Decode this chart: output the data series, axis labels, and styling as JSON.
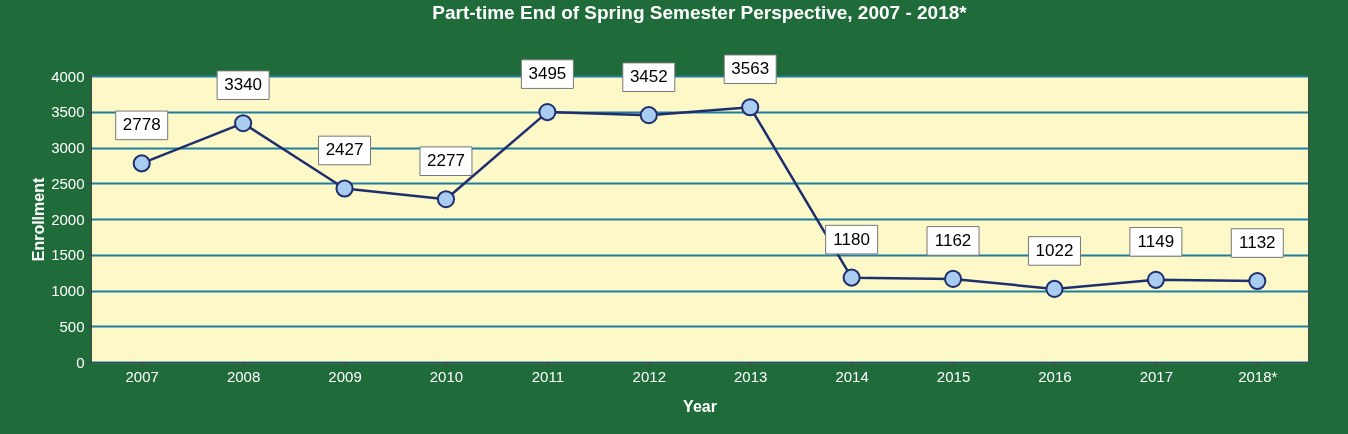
{
  "chart_data": {
    "type": "line",
    "title": "Part-time End of Spring Semester Perspective, 2007 - 2018*",
    "xlabel": "Year",
    "ylabel": "Enrollment",
    "categories": [
      "2007",
      "2008",
      "2009",
      "2010",
      "2011",
      "2012",
      "2013",
      "2014",
      "2015",
      "2016",
      "2017",
      "2018*"
    ],
    "series": [
      {
        "color": "#1f2f6e",
        "values": [
          2778,
          3340,
          2427,
          2277,
          3495,
          3452,
          3563,
          1180,
          1162,
          1022,
          1149,
          1132
        ]
      }
    ],
    "ylim": [
      0,
      4000
    ],
    "yticks": [
      0,
      500,
      1000,
      1500,
      2000,
      2500,
      3000,
      3500,
      4000
    ],
    "grid": "y",
    "marker": "circle",
    "line_style": "solid",
    "data_labels": true
  }
}
